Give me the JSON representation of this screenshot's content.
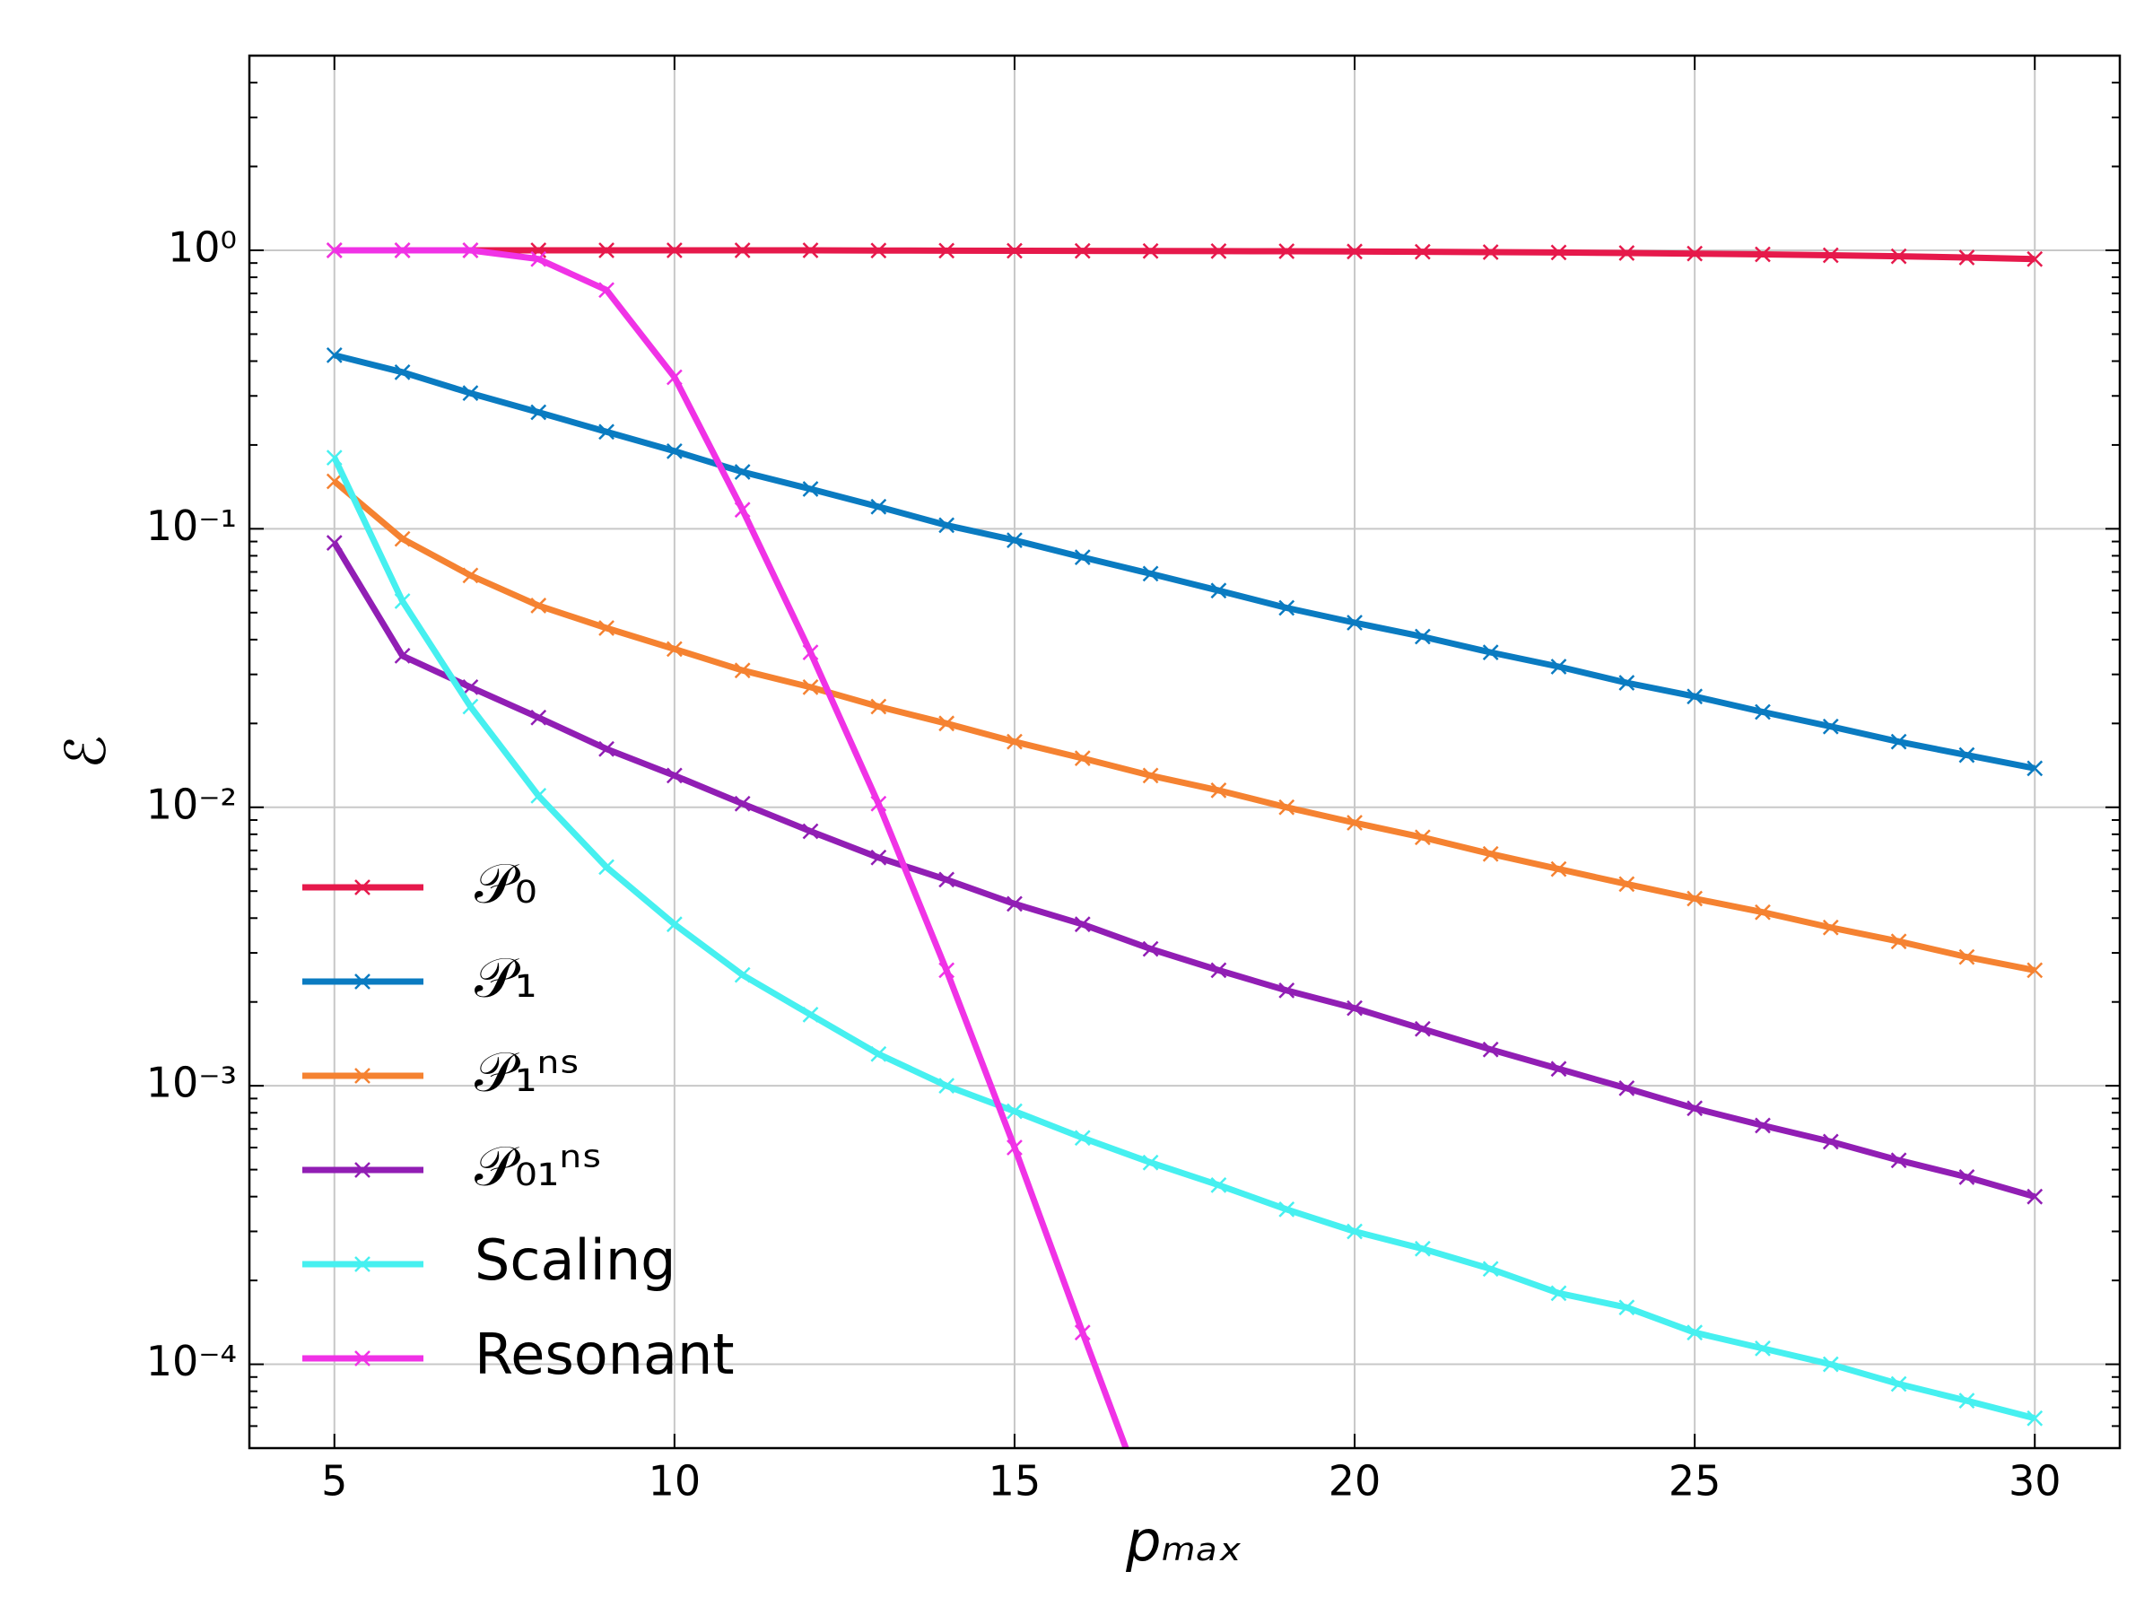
{
  "chart_data": {
    "type": "line",
    "xlabel": "pₘₐₓ",
    "ylabel": "ℰ",
    "x": [
      5,
      6,
      7,
      8,
      9,
      10,
      11,
      12,
      13,
      14,
      15,
      16,
      17,
      18,
      19,
      20,
      21,
      22,
      23,
      24,
      25,
      26,
      27,
      28,
      29,
      30
    ],
    "series": [
      {
        "name": "𝒫₀",
        "color": "#e6194b",
        "values": [
          1.0,
          1.0,
          1.0,
          1.0,
          1.0,
          1.0,
          1.0,
          1.0,
          0.998,
          0.997,
          0.996,
          0.995,
          0.994,
          0.993,
          0.992,
          0.99,
          0.988,
          0.985,
          0.982,
          0.978,
          0.973,
          0.967,
          0.96,
          0.952,
          0.942,
          0.93
        ]
      },
      {
        "name": "𝒫₁",
        "color": "#0a7bc1",
        "values": [
          0.42,
          0.365,
          0.307,
          0.262,
          0.223,
          0.19,
          0.16,
          0.139,
          0.12,
          0.103,
          0.091,
          0.079,
          0.069,
          0.06,
          0.052,
          0.046,
          0.041,
          0.036,
          0.032,
          0.028,
          0.025,
          0.022,
          0.0195,
          0.0172,
          0.0154,
          0.0138
        ]
      },
      {
        "name": "𝒫₁ⁿˢ",
        "color": "#f58231",
        "values": [
          0.148,
          0.092,
          0.068,
          0.053,
          0.044,
          0.037,
          0.031,
          0.027,
          0.023,
          0.02,
          0.0172,
          0.015,
          0.013,
          0.0115,
          0.01,
          0.0088,
          0.0078,
          0.0068,
          0.006,
          0.0053,
          0.0047,
          0.0042,
          0.0037,
          0.0033,
          0.0029,
          0.0026
        ]
      },
      {
        "name": "𝒫₀₁ⁿˢ",
        "color": "#911eb4",
        "values": [
          0.089,
          0.035,
          0.027,
          0.021,
          0.0162,
          0.013,
          0.0103,
          0.0082,
          0.0066,
          0.0055,
          0.0045,
          0.0038,
          0.0031,
          0.0026,
          0.0022,
          0.0019,
          0.0016,
          0.00135,
          0.00115,
          0.00098,
          0.00083,
          0.00072,
          0.00063,
          0.00054,
          0.00047,
          0.0004
        ]
      },
      {
        "name": "Scaling",
        "color": "#46f0f0",
        "values": [
          0.18,
          0.055,
          0.023,
          0.011,
          0.0061,
          0.0038,
          0.0025,
          0.0018,
          0.0013,
          0.001,
          0.00081,
          0.00065,
          0.00053,
          0.00044,
          0.00036,
          0.0003,
          0.00026,
          0.00022,
          0.00018,
          0.00016,
          0.00013,
          0.000114,
          0.0001,
          8.5e-05,
          7.4e-05,
          6.4e-05
        ]
      },
      {
        "name": "Resonant",
        "color": "#f032e6",
        "values": [
          1.0,
          1.0,
          1.0,
          0.93,
          0.72,
          0.35,
          0.117,
          0.036,
          0.0103,
          0.0026,
          0.0006,
          0.00013,
          2.9e-05,
          null,
          null,
          null,
          null,
          null,
          null,
          null,
          null,
          null,
          null,
          null,
          null,
          null
        ]
      }
    ],
    "xlim": [
      3.75,
      31.25
    ],
    "xticks": [
      5,
      10,
      15,
      20,
      25,
      30
    ],
    "ylim": [
      5e-05,
      5
    ],
    "log_y": true,
    "yticks": [
      {
        "value": 1,
        "label": "10⁰"
      },
      {
        "value": 0.1,
        "label": "10⁻¹"
      },
      {
        "value": 0.01,
        "label": "10⁻²"
      },
      {
        "value": 0.001,
        "label": "10⁻³"
      },
      {
        "value": 0.0001,
        "label": "10⁻⁴"
      }
    ],
    "grid": true,
    "legend": "lower left"
  }
}
